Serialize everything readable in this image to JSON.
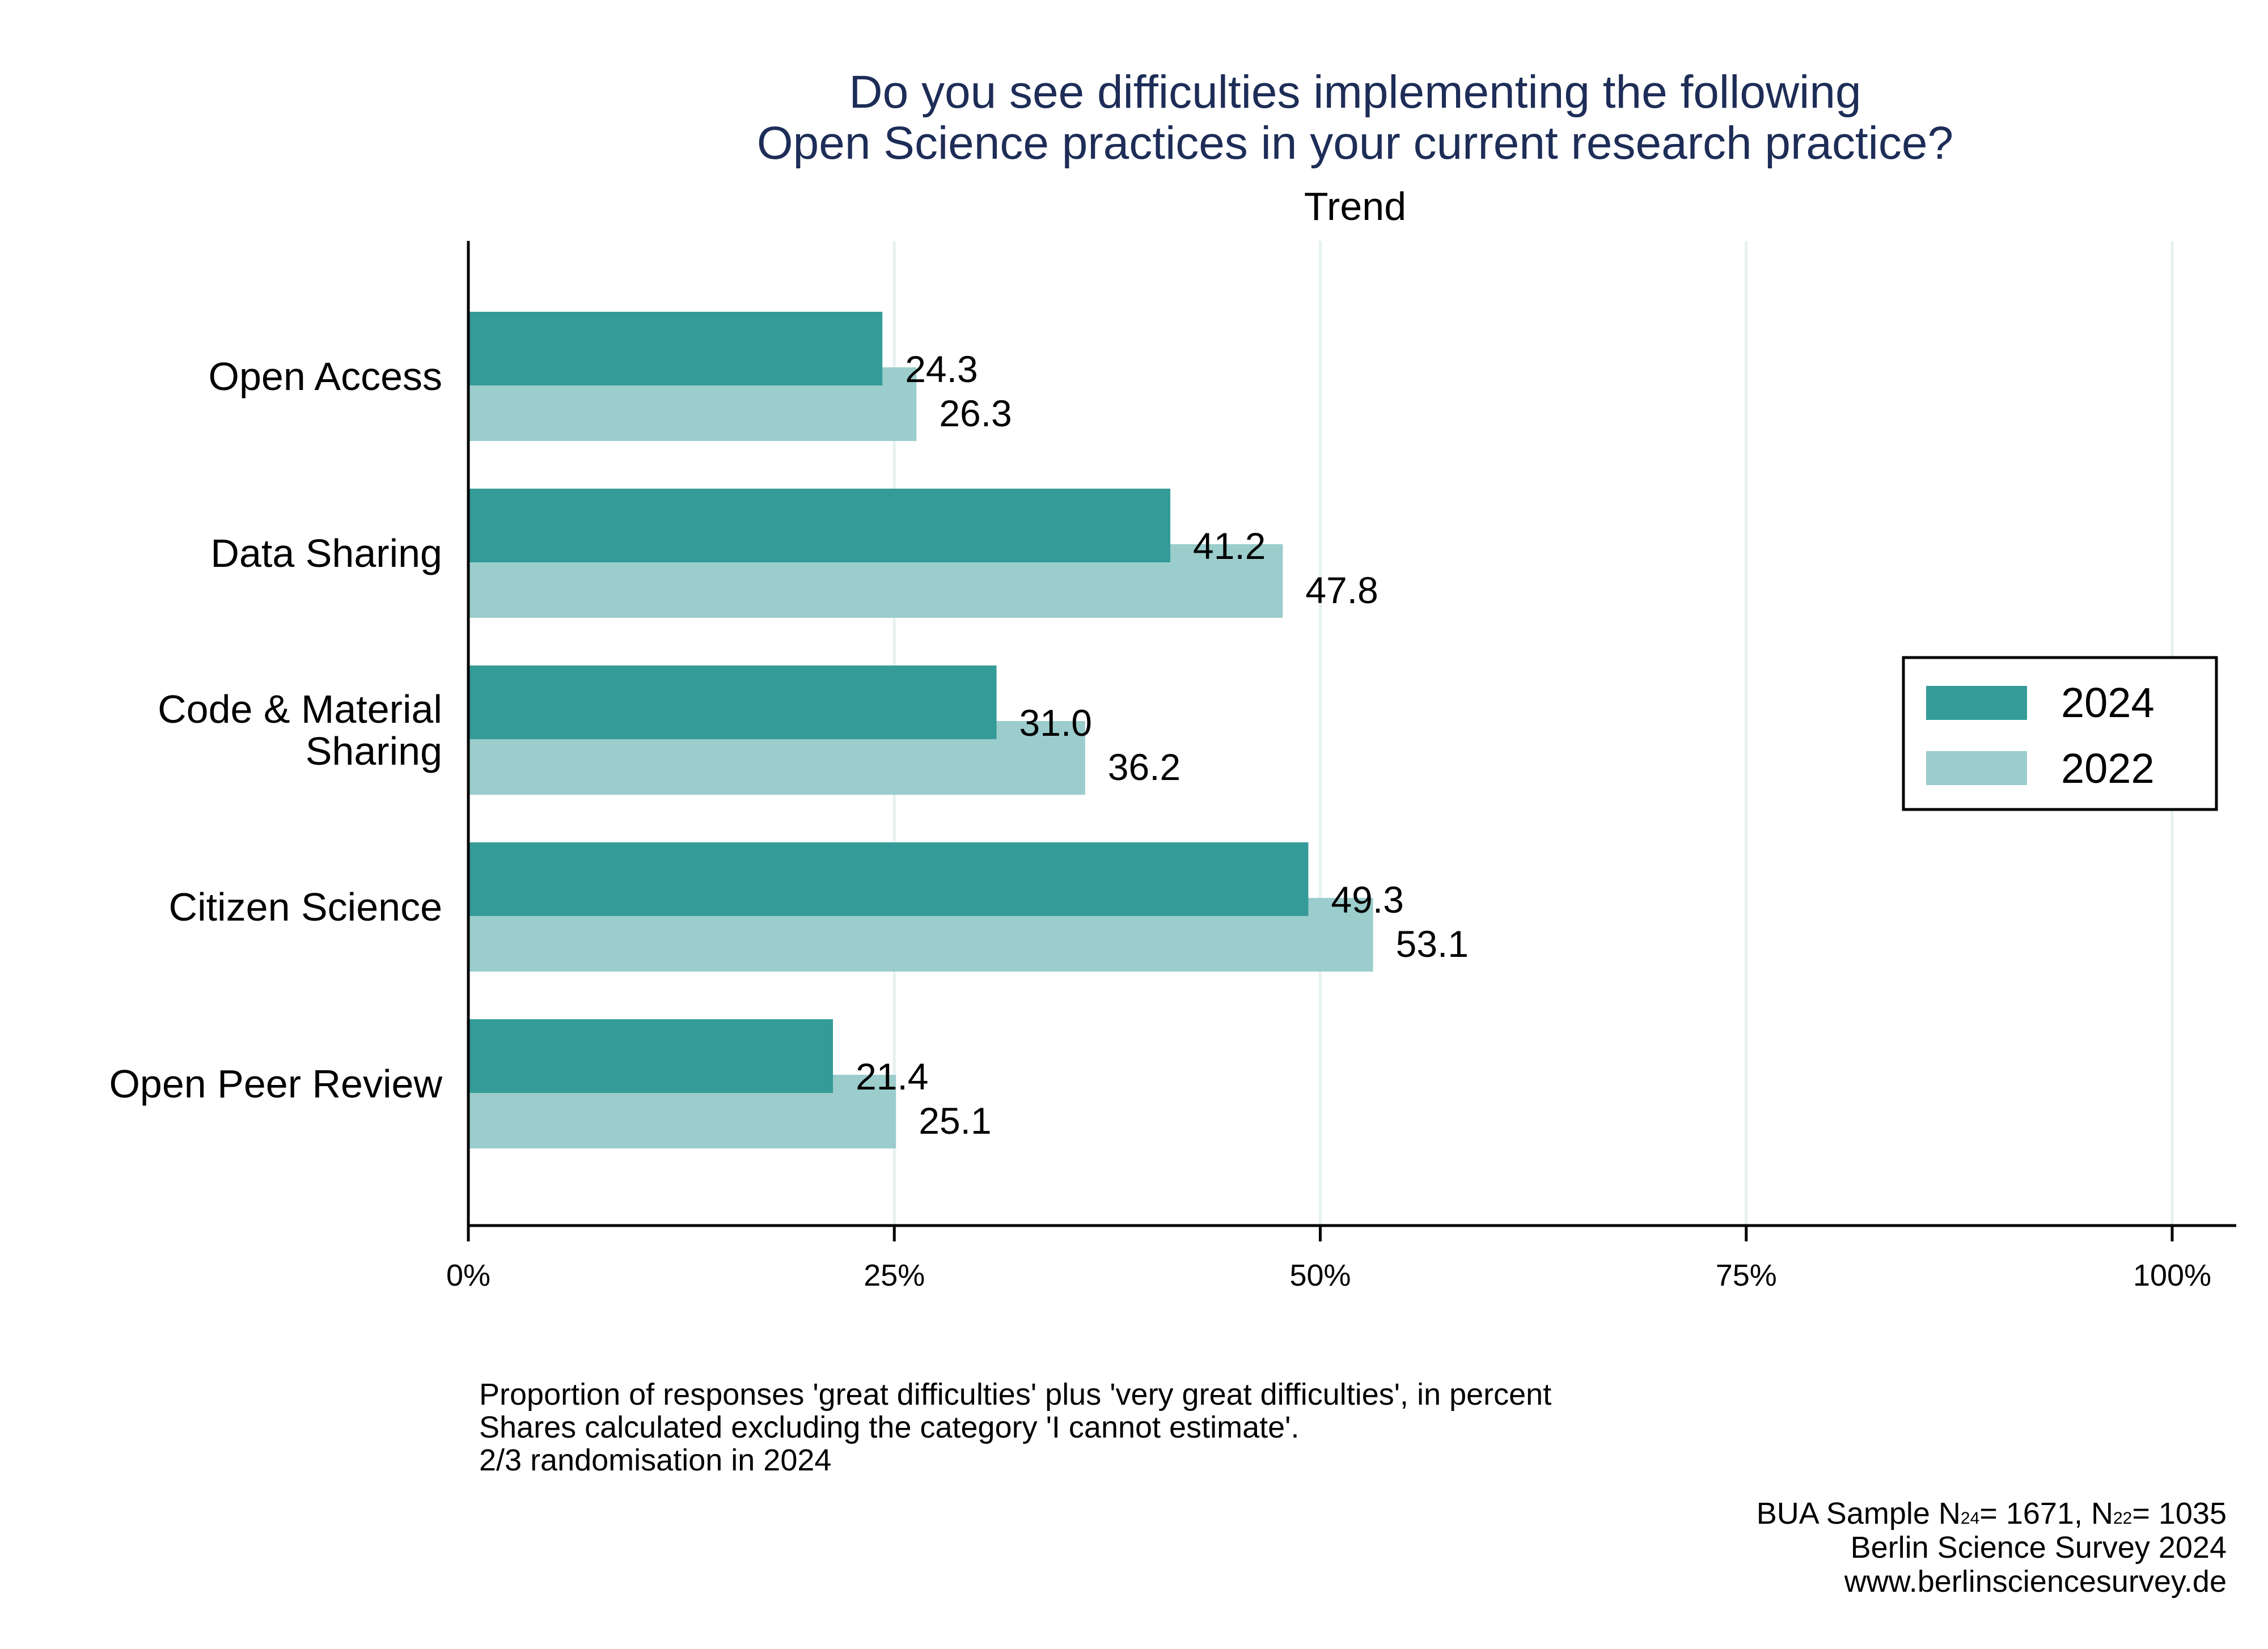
{
  "chart_data": {
    "type": "bar",
    "orientation": "horizontal",
    "title_lines": [
      "Do you see difficulties implementing the following",
      "Open Science practices in your current research practice?"
    ],
    "subtitle": "Trend",
    "categories": [
      [
        "Open Access"
      ],
      [
        "Data Sharing"
      ],
      [
        "Code & Material",
        "Sharing"
      ],
      [
        "Citizen Science"
      ],
      [
        "Open Peer Review"
      ]
    ],
    "series": [
      {
        "name": "2024",
        "color": "#359b98",
        "values": [
          24.3,
          41.2,
          31.0,
          49.3,
          21.4
        ]
      },
      {
        "name": "2022",
        "color": "#9bcdcc",
        "values": [
          26.3,
          47.8,
          36.2,
          53.1,
          25.1
        ]
      }
    ],
    "xlim": [
      0,
      100
    ],
    "xticks": [
      0,
      25,
      50,
      75,
      100
    ],
    "xtick_labels": [
      "0%",
      "25%",
      "50%",
      "75%",
      "100%"
    ],
    "grid": true,
    "legend_position": "right",
    "notes": [
      "Proportion of responses 'great difficulties' plus 'very great difficulties', in percent",
      "Shares calculated excluding the category 'I cannot estimate'.",
      "2/3 randomisation in 2024"
    ],
    "source": {
      "sample_prefix": "BUA Sample N",
      "n24_sub": "24",
      "n24_text": "= 1671, N",
      "n22_sub": "22",
      "n22_text": "= 1035",
      "line2": "Berlin Science Survey 2024",
      "line3": "www.berlinsciencesurvey.de"
    }
  }
}
